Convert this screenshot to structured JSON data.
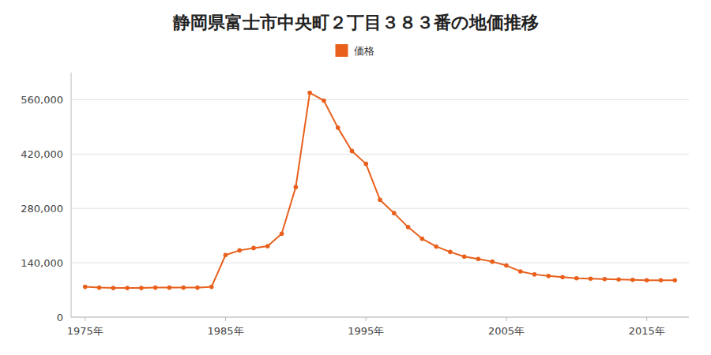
{
  "chart_data": {
    "type": "line",
    "title": "静岡県富士市中央町２丁目３８３番の地価推移",
    "x": [
      1975,
      1976,
      1977,
      1978,
      1979,
      1980,
      1981,
      1982,
      1983,
      1984,
      1985,
      1986,
      1987,
      1988,
      1989,
      1990,
      1991,
      1992,
      1993,
      1994,
      1995,
      1996,
      1997,
      1998,
      1999,
      2000,
      2001,
      2002,
      2003,
      2004,
      2005,
      2006,
      2007,
      2008,
      2009,
      2010,
      2011,
      2012,
      2013,
      2014,
      2015,
      2016,
      2017
    ],
    "series": [
      {
        "name": "価格",
        "color": "#E8601C",
        "marker": "circle",
        "values": [
          78000,
          76000,
          75000,
          75000,
          75000,
          76000,
          76000,
          76000,
          76000,
          78000,
          160000,
          172000,
          178000,
          183000,
          215000,
          335000,
          578000,
          558000,
          488000,
          428000,
          395000,
          302000,
          268000,
          232000,
          202000,
          182000,
          168000,
          156000,
          150000,
          143000,
          133000,
          118000,
          110000,
          106000,
          103000,
          100000,
          99000,
          98000,
          97000,
          96000,
          95000,
          95000,
          95000
        ]
      }
    ],
    "xlim": [
      1974,
      2018
    ],
    "ylim": [
      0,
      630000
    ],
    "xticks": [
      {
        "value": 1975,
        "label": "1975年"
      },
      {
        "value": 1985,
        "label": "1985年"
      },
      {
        "value": 1995,
        "label": "1995年"
      },
      {
        "value": 2005,
        "label": "2005年"
      },
      {
        "value": 2015,
        "label": "2015年"
      }
    ],
    "yticks": [
      0,
      {
        "value": 140000,
        "label": "140,000"
      },
      {
        "value": 280000,
        "label": "280,000"
      },
      {
        "value": 420000,
        "label": "420,000"
      },
      {
        "value": 560000,
        "label": "560,000"
      }
    ],
    "grid": true,
    "legend": "top"
  }
}
